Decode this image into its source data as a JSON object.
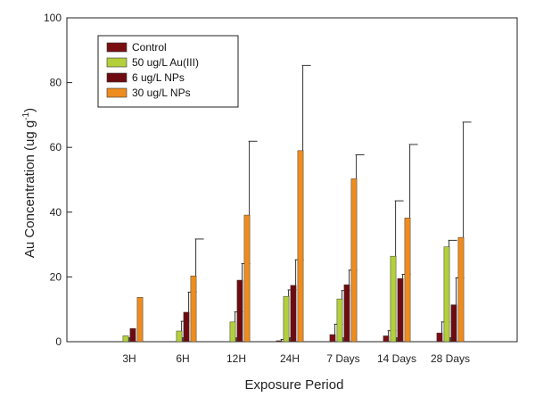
{
  "chart_data": {
    "type": "bar",
    "xlabel": "Exposure Period",
    "ylabel_main": "Au Concentration (ug g",
    "ylabel_sup": "-1",
    "ylabel_end": ")",
    "ylim": [
      0,
      100
    ],
    "yticks": [
      0,
      20,
      40,
      60,
      80,
      100
    ],
    "grid": false,
    "legend_position": "top-left",
    "categories": [
      "3H",
      "6H",
      "12H",
      "24H",
      "7 Days",
      "14 Days",
      "28 Days"
    ],
    "series": [
      {
        "name": "Control",
        "color": "#7a0f12",
        "values": [
          0,
          0,
          0,
          0.3,
          2.2,
          1.8,
          2.7
        ],
        "errors": [
          0,
          0,
          0,
          0.4,
          3.2,
          1.6,
          3.4
        ]
      },
      {
        "name": "50 ug/L Au(III)",
        "color": "#b3cf3a",
        "values": [
          1.8,
          3.3,
          6.1,
          14.0,
          13.2,
          26.4,
          29.3
        ],
        "errors": [
          0,
          3.0,
          3.1,
          2.0,
          2.6,
          17.1,
          2.0
        ]
      },
      {
        "name": "6 ug/L NPs",
        "color": "#6e0b10",
        "values": [
          4.1,
          9.1,
          19.0,
          17.4,
          17.6,
          19.5,
          11.4
        ],
        "errors": [
          0,
          6.2,
          5.1,
          7.9,
          4.5,
          1.3,
          8.3
        ]
      },
      {
        "name": "30 ug/L NPs",
        "color": "#ef8c1e",
        "values": [
          13.7,
          20.3,
          39.1,
          59.0,
          50.3,
          38.2,
          32.2
        ],
        "errors": [
          0,
          11.4,
          22.8,
          26.3,
          7.4,
          22.7,
          35.6
        ]
      }
    ]
  }
}
